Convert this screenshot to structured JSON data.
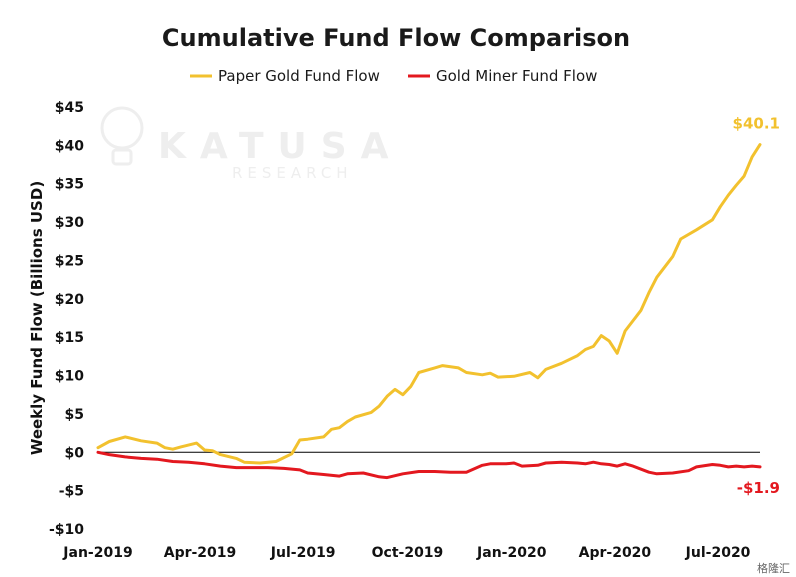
{
  "chart_data": {
    "type": "line",
    "title": "Cumulative Fund Flow Comparison",
    "ylabel": "Weekly Fund Flow (Billions USD)",
    "xlabel": "",
    "ylim": [
      -10,
      45
    ],
    "y_ticks": [
      45,
      40,
      35,
      30,
      25,
      20,
      15,
      10,
      5,
      0,
      -5,
      -10
    ],
    "y_tick_labels": [
      "$45",
      "$40",
      "$35",
      "$30",
      "$25",
      "$20",
      "$15",
      "$10",
      "$5",
      "$0",
      "-$5",
      "-$10"
    ],
    "x_tick_labels": [
      "Jan-2019",
      "Apr-2019",
      "Jul-2019",
      "Oct-2019",
      "Jan-2020",
      "Apr-2020",
      "Jul-2020"
    ],
    "x_tick_dates": [
      "2019-01-01",
      "2019-04-01",
      "2019-07-01",
      "2019-10-01",
      "2020-01-01",
      "2020-04-01",
      "2020-07-01"
    ],
    "x_range": [
      "2019-01-01",
      "2020-08-07"
    ],
    "grid": false,
    "zero_line": true,
    "legend_position": "top",
    "watermark_text": "KATUSA",
    "watermark_subtext": "RESEARCH",
    "corner_mark": "格隆汇",
    "series": [
      {
        "name": "Paper Gold Fund Flow",
        "color": "#f2c12e",
        "end_label": "$40.1",
        "points": [
          [
            "2019-01-01",
            0.6
          ],
          [
            "2019-01-11",
            1.4
          ],
          [
            "2019-01-25",
            2.0
          ],
          [
            "2019-02-08",
            1.5
          ],
          [
            "2019-02-22",
            1.2
          ],
          [
            "2019-03-01",
            0.6
          ],
          [
            "2019-03-08",
            0.4
          ],
          [
            "2019-03-15",
            0.7
          ],
          [
            "2019-03-29",
            1.2
          ],
          [
            "2019-04-05",
            0.3
          ],
          [
            "2019-04-12",
            0.2
          ],
          [
            "2019-04-19",
            -0.3
          ],
          [
            "2019-05-03",
            -0.8
          ],
          [
            "2019-05-10",
            -1.3
          ],
          [
            "2019-05-24",
            -1.4
          ],
          [
            "2019-06-07",
            -1.2
          ],
          [
            "2019-06-14",
            -0.7
          ],
          [
            "2019-06-21",
            -0.2
          ],
          [
            "2019-06-28",
            1.6
          ],
          [
            "2019-07-05",
            1.7
          ],
          [
            "2019-07-19",
            2.0
          ],
          [
            "2019-07-26",
            3.0
          ],
          [
            "2019-08-02",
            3.2
          ],
          [
            "2019-08-09",
            4.0
          ],
          [
            "2019-08-16",
            4.6
          ],
          [
            "2019-08-30",
            5.2
          ],
          [
            "2019-09-06",
            6.0
          ],
          [
            "2019-09-13",
            7.3
          ],
          [
            "2019-09-20",
            8.2
          ],
          [
            "2019-09-27",
            7.5
          ],
          [
            "2019-10-04",
            8.6
          ],
          [
            "2019-10-11",
            10.4
          ],
          [
            "2019-10-25",
            11.0
          ],
          [
            "2019-11-01",
            11.3
          ],
          [
            "2019-11-15",
            11.0
          ],
          [
            "2019-11-22",
            10.4
          ],
          [
            "2019-12-06",
            10.1
          ],
          [
            "2019-12-13",
            10.3
          ],
          [
            "2019-12-20",
            9.8
          ],
          [
            "2020-01-03",
            9.9
          ],
          [
            "2020-01-17",
            10.4
          ],
          [
            "2020-01-24",
            9.7
          ],
          [
            "2020-01-31",
            10.8
          ],
          [
            "2020-02-14",
            11.6
          ],
          [
            "2020-02-28",
            12.6
          ],
          [
            "2020-03-06",
            13.4
          ],
          [
            "2020-03-13",
            13.8
          ],
          [
            "2020-03-20",
            15.2
          ],
          [
            "2020-03-27",
            14.5
          ],
          [
            "2020-04-03",
            12.9
          ],
          [
            "2020-04-10",
            15.8
          ],
          [
            "2020-04-24",
            18.5
          ],
          [
            "2020-05-01",
            20.8
          ],
          [
            "2020-05-08",
            22.8
          ],
          [
            "2020-05-22",
            25.5
          ],
          [
            "2020-05-29",
            27.8
          ],
          [
            "2020-06-12",
            29.0
          ],
          [
            "2020-06-26",
            30.3
          ],
          [
            "2020-07-03",
            32.0
          ],
          [
            "2020-07-10",
            33.5
          ],
          [
            "2020-07-17",
            34.8
          ],
          [
            "2020-07-24",
            36.0
          ],
          [
            "2020-07-31",
            38.5
          ],
          [
            "2020-08-07",
            40.1
          ]
        ]
      },
      {
        "name": "Gold Miner Fund Flow",
        "color": "#e3181f",
        "end_label": "-$1.9",
        "points": [
          [
            "2019-01-01",
            0.0
          ],
          [
            "2019-01-11",
            -0.3
          ],
          [
            "2019-01-25",
            -0.6
          ],
          [
            "2019-02-08",
            -0.8
          ],
          [
            "2019-02-22",
            -0.9
          ],
          [
            "2019-03-08",
            -1.2
          ],
          [
            "2019-03-22",
            -1.3
          ],
          [
            "2019-04-05",
            -1.5
          ],
          [
            "2019-04-19",
            -1.8
          ],
          [
            "2019-05-03",
            -2.0
          ],
          [
            "2019-05-17",
            -2.0
          ],
          [
            "2019-05-31",
            -2.0
          ],
          [
            "2019-06-14",
            -2.1
          ],
          [
            "2019-06-28",
            -2.3
          ],
          [
            "2019-07-05",
            -2.7
          ],
          [
            "2019-07-19",
            -2.9
          ],
          [
            "2019-08-02",
            -3.1
          ],
          [
            "2019-08-09",
            -2.8
          ],
          [
            "2019-08-23",
            -2.7
          ],
          [
            "2019-09-06",
            -3.2
          ],
          [
            "2019-09-13",
            -3.3
          ],
          [
            "2019-09-27",
            -2.8
          ],
          [
            "2019-10-11",
            -2.5
          ],
          [
            "2019-10-25",
            -2.5
          ],
          [
            "2019-11-08",
            -2.6
          ],
          [
            "2019-11-22",
            -2.6
          ],
          [
            "2019-12-06",
            -1.7
          ],
          [
            "2019-12-13",
            -1.5
          ],
          [
            "2019-12-27",
            -1.5
          ],
          [
            "2020-01-03",
            -1.4
          ],
          [
            "2020-01-10",
            -1.8
          ],
          [
            "2020-01-24",
            -1.7
          ],
          [
            "2020-01-31",
            -1.4
          ],
          [
            "2020-02-14",
            -1.3
          ],
          [
            "2020-02-28",
            -1.4
          ],
          [
            "2020-03-06",
            -1.5
          ],
          [
            "2020-03-13",
            -1.3
          ],
          [
            "2020-03-20",
            -1.5
          ],
          [
            "2020-03-27",
            -1.6
          ],
          [
            "2020-04-03",
            -1.8
          ],
          [
            "2020-04-10",
            -1.5
          ],
          [
            "2020-04-17",
            -1.8
          ],
          [
            "2020-05-01",
            -2.6
          ],
          [
            "2020-05-08",
            -2.8
          ],
          [
            "2020-05-22",
            -2.7
          ],
          [
            "2020-06-05",
            -2.4
          ],
          [
            "2020-06-12",
            -1.9
          ],
          [
            "2020-06-26",
            -1.6
          ],
          [
            "2020-07-03",
            -1.7
          ],
          [
            "2020-07-10",
            -1.9
          ],
          [
            "2020-07-17",
            -1.8
          ],
          [
            "2020-07-24",
            -1.9
          ],
          [
            "2020-07-31",
            -1.8
          ],
          [
            "2020-08-07",
            -1.9
          ]
        ]
      }
    ]
  }
}
